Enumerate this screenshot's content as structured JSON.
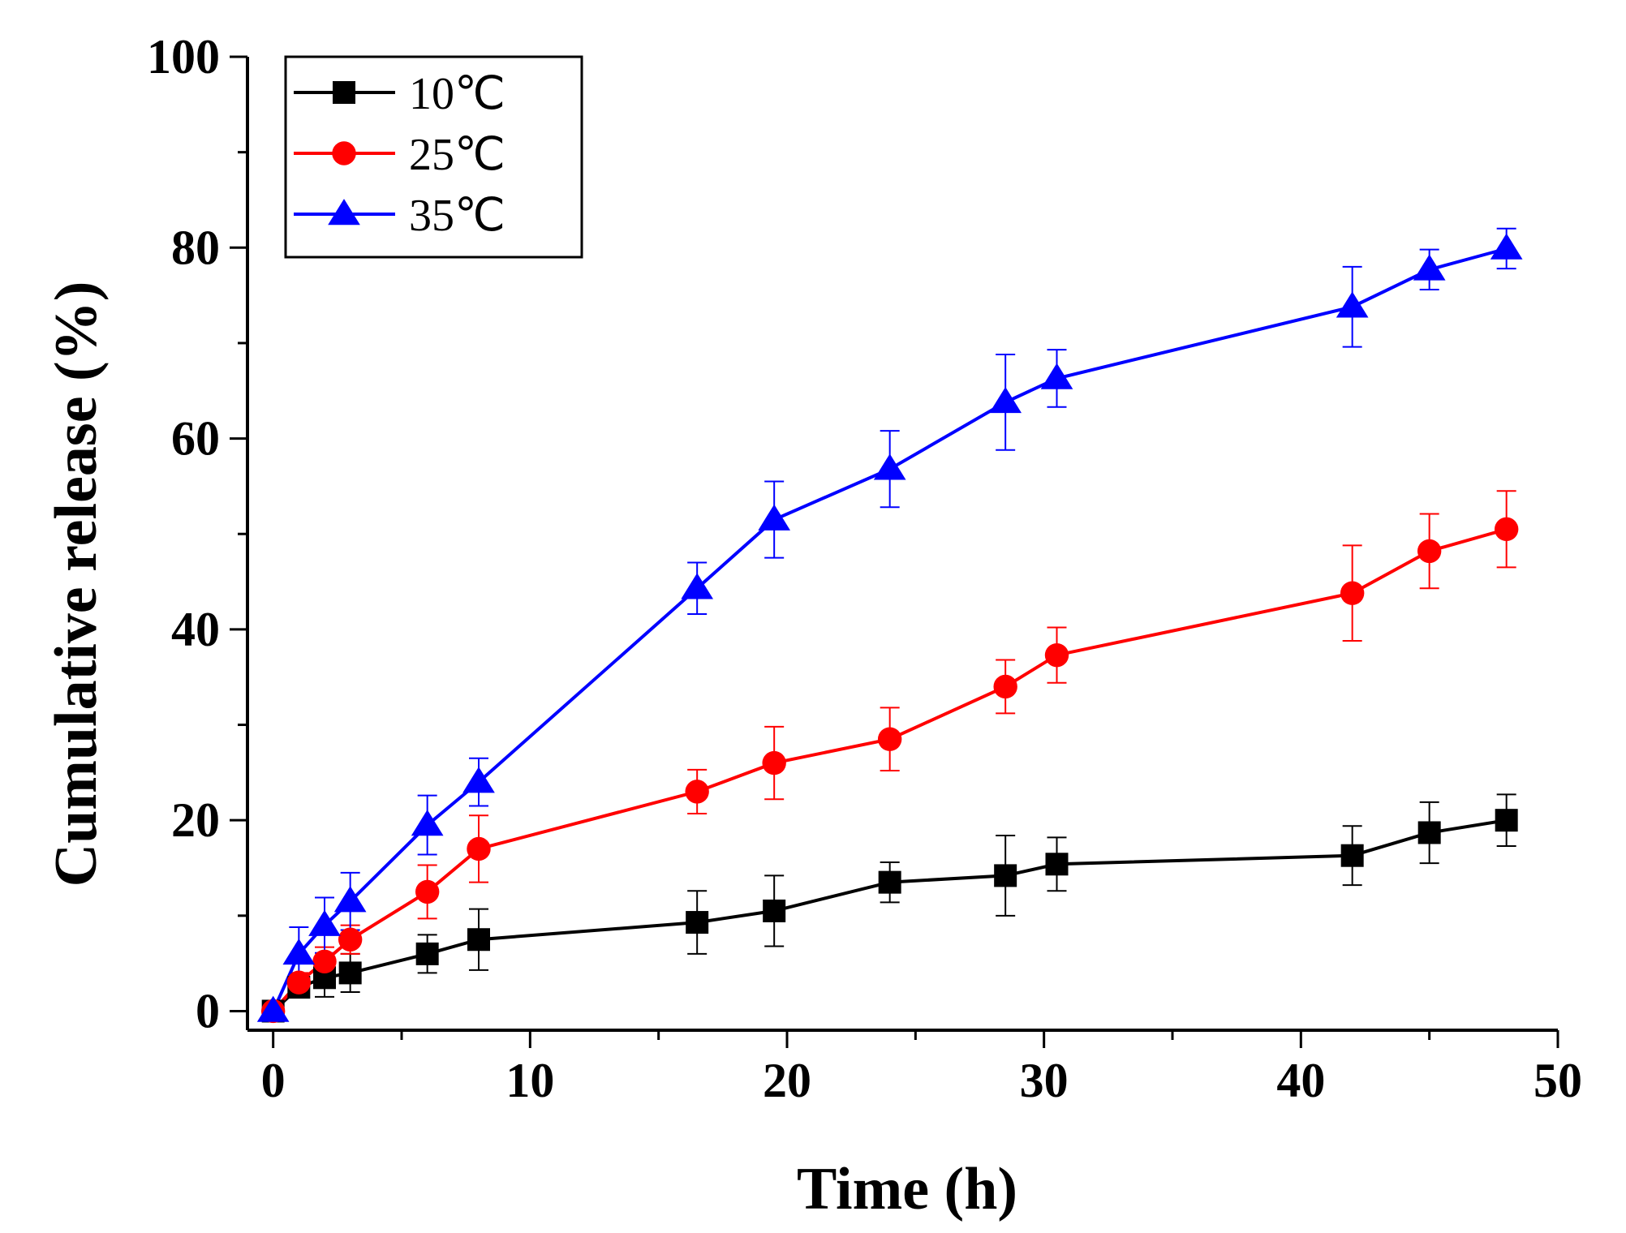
{
  "chart_data": {
    "type": "line",
    "title": "",
    "xlabel": "Time (h)",
    "ylabel": "Cumulative release (%)",
    "xlim": [
      -1,
      50
    ],
    "ylim": [
      -2,
      100
    ],
    "xticks": [
      0,
      10,
      20,
      30,
      40,
      50
    ],
    "yticks": [
      0,
      20,
      40,
      60,
      80,
      100
    ],
    "grid": false,
    "legend_position": "top-left",
    "series": [
      {
        "name": "10℃",
        "color": "#000000",
        "marker": "square",
        "x": [
          0,
          1,
          2,
          3,
          6,
          8,
          16.5,
          19.5,
          24,
          28.5,
          30.5,
          42,
          45,
          48
        ],
        "y": [
          0,
          2.5,
          3.5,
          4,
          6,
          7.5,
          9.3,
          10.5,
          13.5,
          14.2,
          15.4,
          16.3,
          18.7,
          20
        ],
        "err": [
          0,
          1,
          2,
          2,
          2,
          3.2,
          3.3,
          3.7,
          2.1,
          4.2,
          2.8,
          3.1,
          3.2,
          2.7
        ]
      },
      {
        "name": "25℃",
        "color": "#ff0000",
        "marker": "circle",
        "x": [
          0,
          1,
          2,
          3,
          6,
          8,
          16.5,
          19.5,
          24,
          28.5,
          30.5,
          42,
          45,
          48
        ],
        "y": [
          0,
          3,
          5.2,
          7.5,
          12.5,
          17,
          23,
          26,
          28.5,
          34,
          37.3,
          43.8,
          48.2,
          50.5
        ],
        "err": [
          0,
          1,
          1.5,
          1.5,
          2.8,
          3.5,
          2.3,
          3.8,
          3.3,
          2.8,
          2.9,
          5,
          3.9,
          4
        ]
      },
      {
        "name": "35℃",
        "color": "#0000ff",
        "marker": "triangle",
        "x": [
          0,
          1,
          2,
          3,
          6,
          8,
          16.5,
          19.5,
          24,
          28.5,
          30.5,
          42,
          45,
          48
        ],
        "y": [
          0,
          6,
          9,
          11.5,
          19.5,
          24,
          44.3,
          51.5,
          56.8,
          63.8,
          66.3,
          73.8,
          77.7,
          79.9
        ],
        "err": [
          0,
          2.8,
          2.9,
          3,
          3.1,
          2.5,
          2.7,
          4,
          4,
          5,
          3,
          4.2,
          2.1,
          2.1
        ]
      }
    ]
  }
}
